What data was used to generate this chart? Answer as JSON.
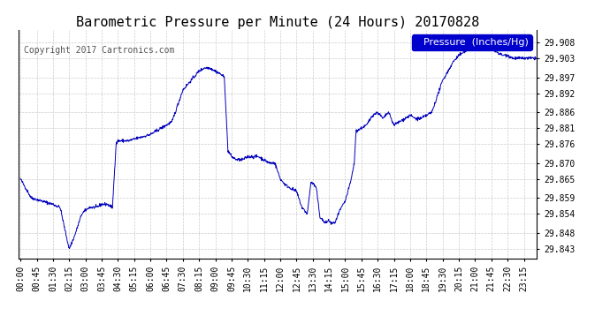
{
  "title": "Barometric Pressure per Minute (24 Hours) 20170828",
  "copyright": "Copyright 2017 Cartronics.com",
  "legend_label": "Pressure  (Inches/Hg)",
  "line_color": "#0000bb",
  "legend_bg": "#0000cc",
  "legend_text_color": "#ffffff",
  "background_color": "#ffffff",
  "grid_color": "#cccccc",
  "ylim_min": 29.84,
  "ylim_max": 29.912,
  "yticks": [
    29.843,
    29.848,
    29.854,
    29.859,
    29.865,
    29.87,
    29.876,
    29.881,
    29.886,
    29.892,
    29.897,
    29.903,
    29.908
  ],
  "xtick_labels": [
    "00:00",
    "00:45",
    "01:30",
    "02:15",
    "03:00",
    "03:45",
    "04:30",
    "05:15",
    "06:00",
    "06:45",
    "07:30",
    "08:15",
    "09:00",
    "09:45",
    "10:30",
    "11:15",
    "12:00",
    "12:45",
    "13:30",
    "14:15",
    "15:00",
    "15:45",
    "16:30",
    "17:15",
    "18:00",
    "18:45",
    "19:30",
    "20:15",
    "21:00",
    "21:45",
    "22:30",
    "23:15"
  ],
  "title_fontsize": 11,
  "tick_fontsize": 7,
  "copyright_fontsize": 7,
  "legend_fontsize": 8,
  "waypoints": [
    [
      0,
      29.865
    ],
    [
      15,
      29.862
    ],
    [
      30,
      29.859
    ],
    [
      60,
      29.858
    ],
    [
      90,
      29.857
    ],
    [
      110,
      29.856
    ],
    [
      125,
      29.848
    ],
    [
      135,
      29.843
    ],
    [
      150,
      29.847
    ],
    [
      170,
      29.854
    ],
    [
      190,
      29.856
    ],
    [
      210,
      29.856
    ],
    [
      225,
      29.857
    ],
    [
      240,
      29.857
    ],
    [
      255,
      29.856
    ],
    [
      265,
      29.876
    ],
    [
      270,
      29.877
    ],
    [
      285,
      29.877
    ],
    [
      300,
      29.877
    ],
    [
      330,
      29.878
    ],
    [
      360,
      29.879
    ],
    [
      390,
      29.881
    ],
    [
      420,
      29.883
    ],
    [
      435,
      29.888
    ],
    [
      450,
      29.893
    ],
    [
      465,
      29.895
    ],
    [
      480,
      29.897
    ],
    [
      495,
      29.899
    ],
    [
      510,
      29.9
    ],
    [
      525,
      29.9
    ],
    [
      540,
      29.899
    ],
    [
      555,
      29.898
    ],
    [
      565,
      29.897
    ],
    [
      575,
      29.874
    ],
    [
      585,
      29.872
    ],
    [
      600,
      29.871
    ],
    [
      615,
      29.871
    ],
    [
      630,
      29.872
    ],
    [
      660,
      29.872
    ],
    [
      675,
      29.871
    ],
    [
      690,
      29.87
    ],
    [
      705,
      29.87
    ],
    [
      720,
      29.865
    ],
    [
      735,
      29.863
    ],
    [
      750,
      29.862
    ],
    [
      765,
      29.861
    ],
    [
      780,
      29.856
    ],
    [
      795,
      29.854
    ],
    [
      805,
      29.864
    ],
    [
      815,
      29.863
    ],
    [
      820,
      29.862
    ],
    [
      830,
      29.853
    ],
    [
      845,
      29.851
    ],
    [
      855,
      29.852
    ],
    [
      860,
      29.851
    ],
    [
      865,
      29.851
    ],
    [
      870,
      29.851
    ],
    [
      875,
      29.852
    ],
    [
      885,
      29.855
    ],
    [
      900,
      29.858
    ],
    [
      915,
      29.864
    ],
    [
      925,
      29.87
    ],
    [
      930,
      29.88
    ],
    [
      945,
      29.881
    ],
    [
      960,
      29.882
    ],
    [
      975,
      29.885
    ],
    [
      990,
      29.886
    ],
    [
      1005,
      29.884
    ],
    [
      1020,
      29.886
    ],
    [
      1035,
      29.882
    ],
    [
      1050,
      29.883
    ],
    [
      1065,
      29.884
    ],
    [
      1080,
      29.885
    ],
    [
      1095,
      29.884
    ],
    [
      1110,
      29.884
    ],
    [
      1125,
      29.885
    ],
    [
      1140,
      29.886
    ],
    [
      1155,
      29.891
    ],
    [
      1170,
      29.896
    ],
    [
      1185,
      29.899
    ],
    [
      1200,
      29.902
    ],
    [
      1215,
      29.904
    ],
    [
      1230,
      29.905
    ],
    [
      1245,
      29.906
    ],
    [
      1255,
      29.907
    ],
    [
      1260,
      29.907
    ],
    [
      1275,
      29.908
    ],
    [
      1285,
      29.907
    ],
    [
      1295,
      29.906
    ],
    [
      1305,
      29.906
    ],
    [
      1320,
      29.905
    ],
    [
      1335,
      29.904
    ],
    [
      1350,
      29.904
    ],
    [
      1365,
      29.903
    ],
    [
      1380,
      29.903
    ],
    [
      1395,
      29.903
    ],
    [
      1410,
      29.903
    ],
    [
      1425,
      29.903
    ],
    [
      1439,
      29.903
    ]
  ]
}
